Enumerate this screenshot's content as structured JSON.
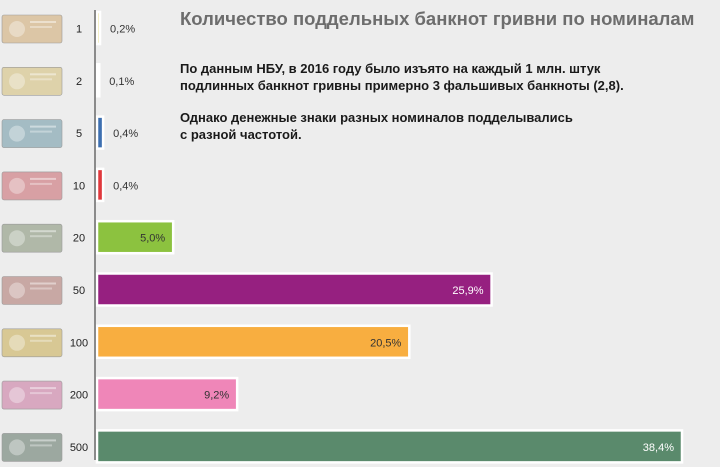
{
  "title": "Количество поддельных банкнот гривни по номиналам",
  "note1": {
    "line1": "По данным НБУ, в 2016 году было изъято на каждый 1 млн. штук",
    "line2": "подлинных банкнот гривны примерно 3 фальшивых банкноты (2,8)."
  },
  "note2": {
    "line1": "Однако денежные знаки разных номиналов подделывались",
    "line2": "с разной частотой."
  },
  "chart_data": {
    "type": "bar",
    "orientation": "horizontal",
    "categories": [
      "1",
      "2",
      "5",
      "10",
      "20",
      "50",
      "100",
      "200",
      "500"
    ],
    "values": [
      0.2,
      0.1,
      0.4,
      0.4,
      5.0,
      25.9,
      20.5,
      9.2,
      38.4
    ],
    "value_labels": [
      "0,2%",
      "0,1%",
      "0,4%",
      "0,4%",
      "5,0%",
      "25,9%",
      "20,5%",
      "9,2%",
      "38,4%"
    ],
    "colors": [
      "#ece49a",
      "#d8d8d8",
      "#3d6fb0",
      "#e0383c",
      "#8cc23f",
      "#962080",
      "#f8ae40",
      "#ef86b8",
      "#5a8a6c"
    ],
    "note_colors": [
      "#dcc6a6",
      "#ded2aa",
      "#a4bcc4",
      "#d8a0a4",
      "#b0b8a8",
      "#c8a8a4",
      "#d8c894",
      "#d8a8c0",
      "#9ca8a0"
    ],
    "label_colors": [
      "#333333",
      "#333333",
      "#333333",
      "#333333",
      "#333333",
      "#ffffff",
      "#333333",
      "#333333",
      "#ffffff"
    ],
    "xlim": [
      0,
      38.4
    ],
    "title": "Количество поддельных банкнот гривни по номиналам",
    "xlabel": "",
    "ylabel": ""
  }
}
